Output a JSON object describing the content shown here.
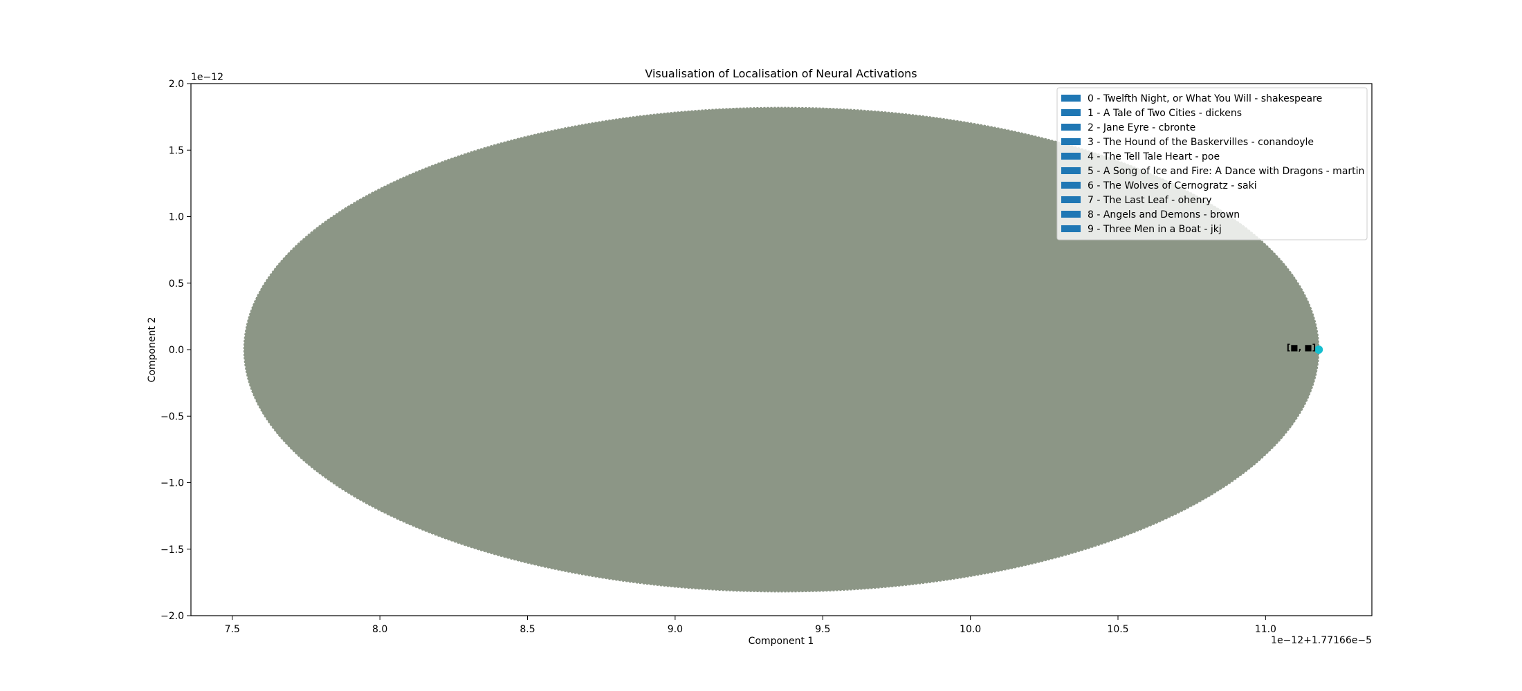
{
  "chart_data": {
    "type": "scatter",
    "title": "Visualisation of Localisation of Neural Activations",
    "xlabel": "Component 1",
    "ylabel": "Component 2",
    "x_offset_text": "1e−12+1.77166e−5",
    "y_offset_text": "1e−12",
    "xlim": [
      7.36,
      11.36
    ],
    "ylim": [
      -2.0,
      2.0
    ],
    "x_ticks": [
      "7.5",
      "8.0",
      "8.5",
      "9.0",
      "9.5",
      "10.0",
      "10.5",
      "11.0"
    ],
    "y_ticks": [
      "−2.0",
      "−1.5",
      "−1.0",
      "−0.5",
      "0.0",
      "0.5",
      "1.0",
      "1.5",
      "2.0"
    ],
    "grid": false,
    "legend_position": "top-right",
    "ellipse": {
      "cx": 9.36,
      "cy": 0.0,
      "rx": 1.82,
      "ry": 1.82,
      "color": "#8c9686"
    },
    "points": [
      {
        "x": 11.18,
        "y": 0.0,
        "color": "#17becf"
      }
    ],
    "point_annotation": "[■, ■]",
    "legend_color": "#1f77b4",
    "series": [
      {
        "name": "0 - Twelfth Night, or What You Will - shakespeare"
      },
      {
        "name": "1 - A Tale of Two Cities - dickens"
      },
      {
        "name": "2 - Jane Eyre - cbronte"
      },
      {
        "name": "3 - The Hound of the Baskervilles - conandoyle"
      },
      {
        "name": "4 - The Tell Tale Heart - poe"
      },
      {
        "name": "5 - A Song of Ice and Fire: A Dance with Dragons - martin"
      },
      {
        "name": "6 - The Wolves of Cernogratz - saki"
      },
      {
        "name": "7 - The Last Leaf - ohenry"
      },
      {
        "name": "8 - Angels and Demons - brown"
      },
      {
        "name": "9 - Three Men in a Boat - jkj"
      }
    ]
  }
}
